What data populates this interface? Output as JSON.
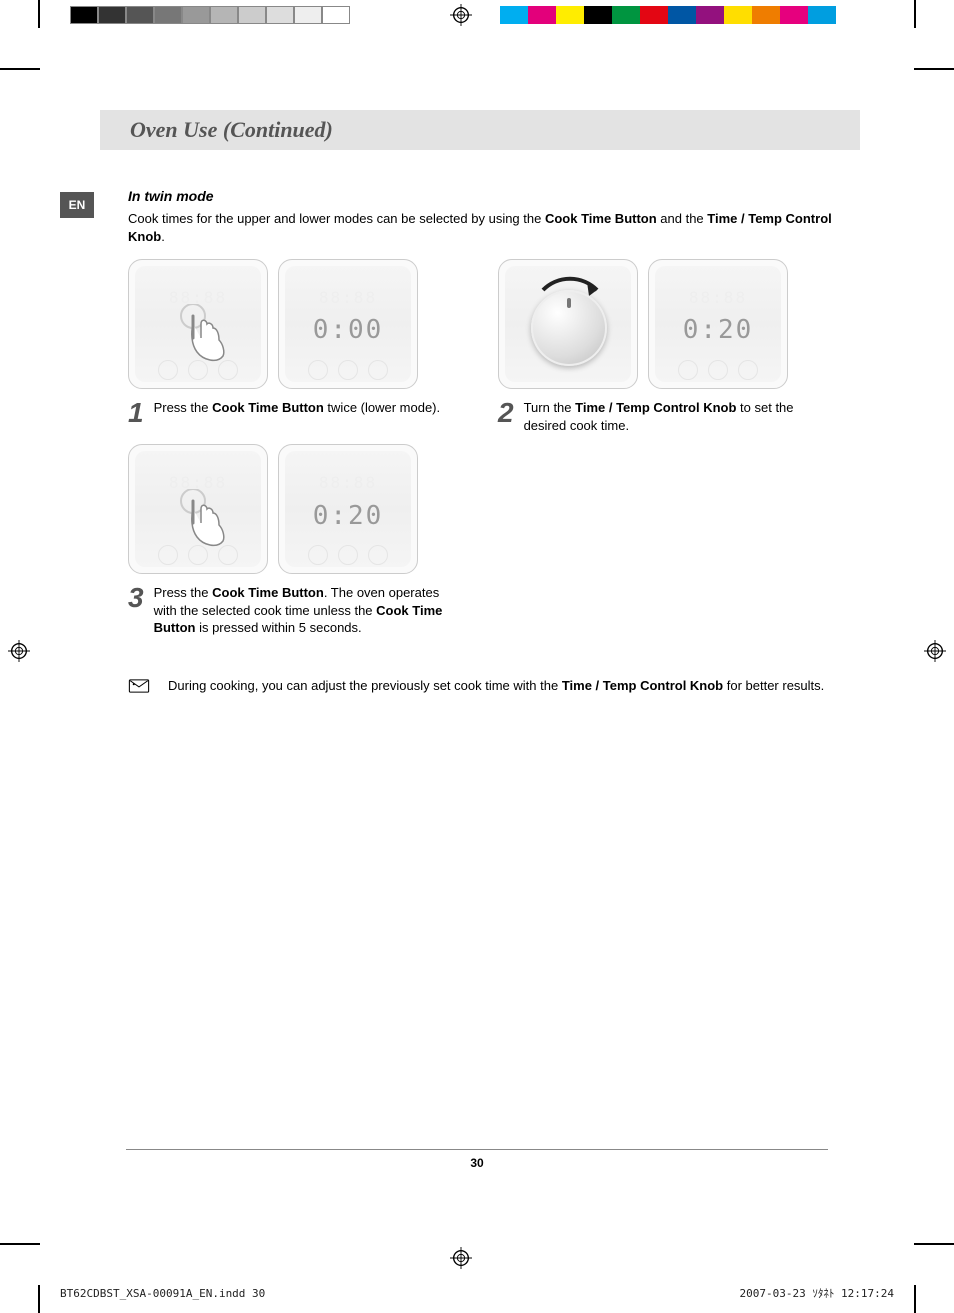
{
  "printer_marks": {
    "gray_swatches": [
      "#000000",
      "#333333",
      "#555555",
      "#777777",
      "#999999",
      "#b5b5b5",
      "#cccccc",
      "#dddddd",
      "#eeeeee",
      "#ffffff"
    ],
    "color_swatches": [
      "#00aef0",
      "#e3007b",
      "#ffed00",
      "#000000",
      "#009540",
      "#e30613",
      "#0056a4",
      "#93117e",
      "#ffde00",
      "#ef7d00",
      "#e6007e",
      "#009ee0"
    ]
  },
  "lang_tab": "EN",
  "heading": "Oven Use (Continued)",
  "subheading": "In twin mode",
  "intro_parts": [
    "Cook times for the upper and lower modes can be selected by using the ",
    "Cook Time Button",
    " and the ",
    "Time / Temp Control Knob",
    "."
  ],
  "steps": {
    "s1": {
      "num": "1",
      "lcd": "0:00",
      "parts": [
        "Press the ",
        "Cook Time Button",
        " twice (lower mode)."
      ]
    },
    "s2": {
      "num": "2",
      "lcd": "0:20",
      "parts": [
        "Turn the ",
        "Time / Temp Control Knob",
        " to set the desired cook time."
      ]
    },
    "s3": {
      "num": "3",
      "lcd": "0:20",
      "parts": [
        "Press the ",
        "Cook Time Button",
        ". The oven operates with the selected cook time unless the ",
        "Cook Time Button",
        " is pressed within 5 seconds."
      ]
    }
  },
  "note_parts": [
    "During cooking, you can adjust the previously set cook time with the ",
    "Time / Temp Control Knob",
    " for better results."
  ],
  "page_number": "30",
  "footer": {
    "file": "BT62CDBST_XSA-00091A_EN.indd   30",
    "datetime": "2007-03-23   ｿﾀﾈﾄ 12:17:24"
  },
  "colors": {
    "heading_bg": "#e3e3e3",
    "heading_fg": "#555555",
    "tab_bg": "#555555",
    "tab_fg": "#ffffff",
    "lcd_fg": "#999999"
  }
}
